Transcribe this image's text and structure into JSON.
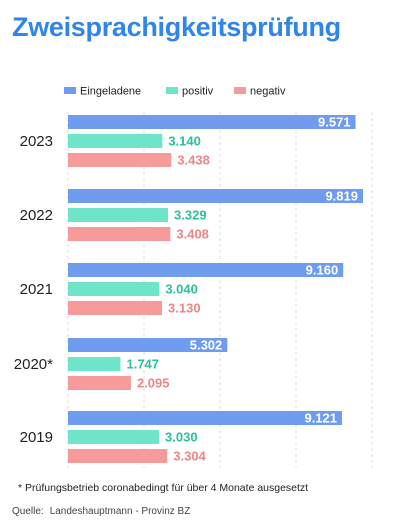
{
  "title": "Zweisprachigkeitsprüfung",
  "footnote": "* Prüfungsbetrieb coronabedingt für über 4 Monate ausgesetzt",
  "source_label": "Quelle:",
  "source_text": "Landeshauptmann - Provinz BZ",
  "colors": {
    "title": "#2f86e8",
    "eingeladene": "#6f9cee",
    "positiv": "#6ee4c8",
    "negativ": "#f79a9a",
    "grid": "#dddddd"
  },
  "chart_data": {
    "type": "bar",
    "orientation": "horizontal",
    "categories": [
      "2023",
      "2022",
      "2021",
      "2020*",
      "2019"
    ],
    "series": [
      {
        "name": "Eingeladene",
        "values": [
          9571,
          9819,
          9160,
          5302,
          9121
        ],
        "labels": [
          "9.571",
          "9.819",
          "9.160",
          "5.302",
          "9.121"
        ]
      },
      {
        "name": "positiv",
        "values": [
          3140,
          3329,
          3040,
          1747,
          3030
        ],
        "labels": [
          "3.140",
          "3.329",
          "3.040",
          "1.747",
          "3.030"
        ]
      },
      {
        "name": "negativ",
        "values": [
          3438,
          3408,
          3130,
          2095,
          3304
        ],
        "labels": [
          "3.438",
          "3.408",
          "3.130",
          "2.095",
          "3.304"
        ]
      }
    ],
    "xlim": [
      0,
      10000
    ],
    "grid": true,
    "legend": "top"
  }
}
